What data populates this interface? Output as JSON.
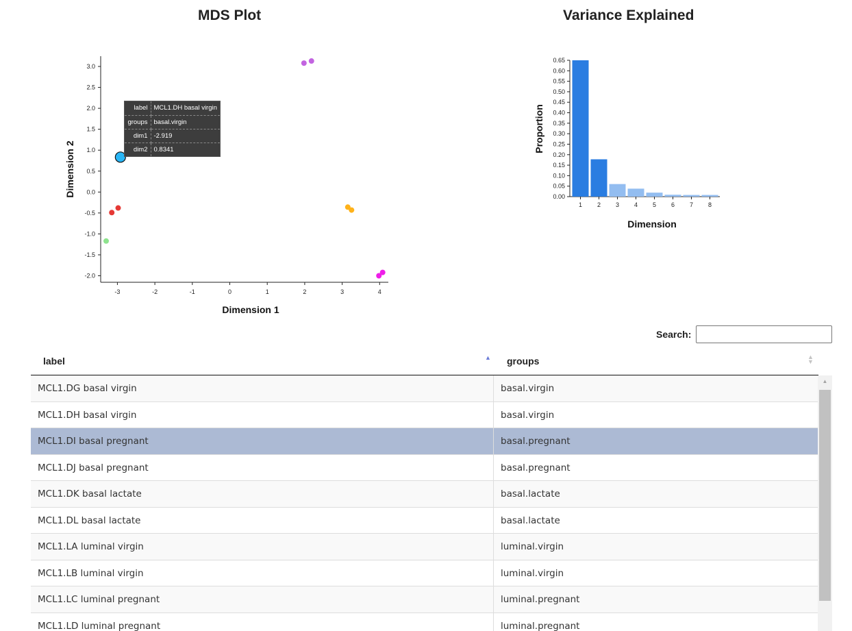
{
  "mds": {
    "title": "MDS Plot",
    "tooltip": {
      "rows": [
        {
          "key": "label",
          "value": "MCL1.DH basal virgin"
        },
        {
          "key": "groups",
          "value": "basal.virgin"
        },
        {
          "key": "dim1",
          "value": "-2.919"
        },
        {
          "key": "dim2",
          "value": "0.8341"
        }
      ]
    }
  },
  "variance": {
    "title": "Variance Explained"
  },
  "chart_data": [
    {
      "type": "scatter",
      "title": "MDS Plot",
      "xlabel": "Dimension 1",
      "ylabel": "Dimension 2",
      "xlim": [
        -3.3,
        4.2
      ],
      "ylim": [
        -2.1,
        3.25
      ],
      "x_ticks": [
        "-3",
        "-2",
        "-1",
        "0",
        "1",
        "2",
        "3",
        "4"
      ],
      "y_ticks": [
        "3.0",
        "2.5",
        "2.0",
        "1.5",
        "1.0",
        "0.5",
        "0.0",
        "-0.5",
        "-1.0",
        "-1.5",
        "-2.0"
      ],
      "grid": false,
      "series": [
        {
          "color": "#c264e0",
          "points": [
            {
              "x": 1.98,
              "y": 3.08
            },
            {
              "x": 2.18,
              "y": 3.13
            }
          ]
        },
        {
          "color": "#29b6f6",
          "highlight": true,
          "points": [
            {
              "x": -2.919,
              "y": 0.8341
            }
          ]
        },
        {
          "color": "#e53935",
          "points": [
            {
              "x": -3.15,
              "y": -0.49
            },
            {
              "x": -2.98,
              "y": -0.38
            }
          ]
        },
        {
          "color": "#8ee38e",
          "points": [
            {
              "x": -3.3,
              "y": -1.17
            }
          ]
        },
        {
          "color": "#ffb21a",
          "points": [
            {
              "x": 3.15,
              "y": -0.36
            },
            {
              "x": 3.25,
              "y": -0.43
            }
          ]
        },
        {
          "color": "#ee1ee8",
          "points": [
            {
              "x": 3.98,
              "y": -2.0
            },
            {
              "x": 4.08,
              "y": -1.92
            }
          ]
        }
      ]
    },
    {
      "type": "bar",
      "title": "Variance Explained",
      "xlabel": "Dimension",
      "ylabel": "Proportion",
      "categories": [
        "1",
        "2",
        "3",
        "4",
        "5",
        "6",
        "7",
        "8"
      ],
      "values": [
        0.65,
        0.178,
        0.06,
        0.038,
        0.019,
        0.009,
        0.008,
        0.008
      ],
      "ylim": [
        0,
        0.65
      ],
      "y_ticks": [
        "0.65",
        "0.60",
        "0.55",
        "0.50",
        "0.45",
        "0.40",
        "0.35",
        "0.30",
        "0.25",
        "0.20",
        "0.15",
        "0.10",
        "0.05",
        "0.00"
      ],
      "highlighted": [
        "1",
        "2"
      ],
      "colors": {
        "highlight": "#2a7de1",
        "normal": "#93bdf0"
      }
    }
  ],
  "search": {
    "label": "Search:",
    "value": ""
  },
  "table": {
    "columns": [
      "label",
      "groups"
    ],
    "selected_index": 2,
    "rows": [
      {
        "label": "MCL1.DG basal virgin",
        "groups": "basal.virgin"
      },
      {
        "label": "MCL1.DH basal virgin",
        "groups": "basal.virgin"
      },
      {
        "label": "MCL1.DI basal pregnant",
        "groups": "basal.pregnant"
      },
      {
        "label": "MCL1.DJ basal pregnant",
        "groups": "basal.pregnant"
      },
      {
        "label": "MCL1.DK basal lactate",
        "groups": "basal.lactate"
      },
      {
        "label": "MCL1.DL basal lactate",
        "groups": "basal.lactate"
      },
      {
        "label": "MCL1.LA luminal virgin",
        "groups": "luminal.virgin"
      },
      {
        "label": "MCL1.LB luminal virgin",
        "groups": "luminal.virgin"
      },
      {
        "label": "MCL1.LC luminal pregnant",
        "groups": "luminal.pregnant"
      },
      {
        "label": "MCL1.LD luminal pregnant",
        "groups": "luminal.pregnant"
      }
    ]
  }
}
